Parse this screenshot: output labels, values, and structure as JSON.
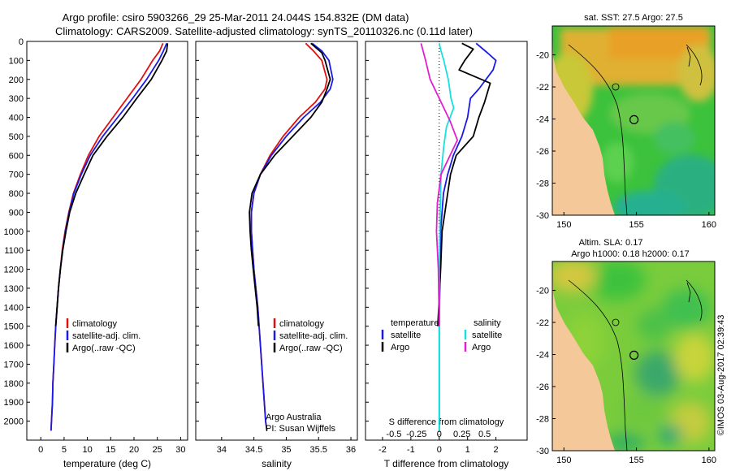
{
  "header": {
    "title_line1": "Argo profile: csiro 5903266_29 25-Mar-2011 24.044S 154.832E (DM data)",
    "title_line2": "Climatology: CARS2009. Satellite-adjusted climatology: synTS_20110326.nc (0.11d later)"
  },
  "credit": {
    "org": "Argo Australia",
    "pi": "PI: Susan Wijffels"
  },
  "timestamp": "©IMOS 03-Aug-2017 02:39:43",
  "colors": {
    "climatology": "#e01010",
    "satellite": "#1a1ae6",
    "argo": "#000000",
    "salinity_satellite": "#18e0e0",
    "salinity_argo": "#e020d0",
    "land": "#f5c89a",
    "contour": "#000000"
  },
  "chart_data": [
    {
      "id": "temperature",
      "type": "line",
      "xlabel": "temperature (deg C)",
      "ylabel": "",
      "xlim": [
        -3,
        31.5
      ],
      "ylim": [
        2100,
        0
      ],
      "xticks": [
        0,
        5,
        10,
        15,
        20,
        25,
        30
      ],
      "yticks": [
        0,
        100,
        200,
        300,
        400,
        500,
        600,
        700,
        800,
        900,
        1000,
        1100,
        1200,
        1300,
        1400,
        1500,
        1600,
        1700,
        1800,
        1900,
        2000
      ],
      "legend": [
        "climatology",
        "satellite-adj. clim.",
        "Argo(..raw -QC)"
      ],
      "series": [
        {
          "name": "climatology",
          "color": "climatology",
          "points": [
            [
              26.2,
              10
            ],
            [
              25.5,
              50
            ],
            [
              24.0,
              100
            ],
            [
              21.5,
              200
            ],
            [
              18.5,
              300
            ],
            [
              15.5,
              400
            ],
            [
              12.5,
              500
            ],
            [
              10.2,
              600
            ],
            [
              8.5,
              700
            ],
            [
              7.0,
              800
            ],
            [
              6.0,
              900
            ],
            [
              5.2,
              1000
            ],
            [
              4.6,
              1100
            ],
            [
              4.2,
              1200
            ],
            [
              3.8,
              1300
            ],
            [
              3.5,
              1400
            ],
            [
              3.2,
              1500
            ],
            [
              3.0,
              1600
            ],
            [
              2.8,
              1700
            ],
            [
              2.6,
              1800
            ],
            [
              2.5,
              1900
            ],
            [
              2.3,
              2000
            ],
            [
              2.2,
              2050
            ]
          ]
        },
        {
          "name": "satellite-adj. clim.",
          "color": "satellite",
          "points": [
            [
              27.0,
              10
            ],
            [
              26.3,
              50
            ],
            [
              25.3,
              100
            ],
            [
              22.7,
              200
            ],
            [
              19.7,
              300
            ],
            [
              16.5,
              400
            ],
            [
              13.3,
              500
            ],
            [
              10.6,
              600
            ],
            [
              8.7,
              700
            ],
            [
              7.1,
              800
            ],
            [
              6.1,
              900
            ],
            [
              5.3,
              1000
            ],
            [
              4.7,
              1100
            ],
            [
              4.2,
              1200
            ],
            [
              3.8,
              1300
            ],
            [
              3.5,
              1400
            ],
            [
              3.2,
              1500
            ],
            [
              3.0,
              1600
            ],
            [
              2.8,
              1700
            ],
            [
              2.6,
              1800
            ],
            [
              2.5,
              1900
            ],
            [
              2.3,
              2000
            ],
            [
              2.2,
              2050
            ]
          ]
        },
        {
          "name": "Argo(..raw -QC)",
          "color": "argo",
          "points": [
            [
              27.2,
              10
            ],
            [
              27.0,
              50
            ],
            [
              26.0,
              100
            ],
            [
              23.7,
              200
            ],
            [
              20.6,
              300
            ],
            [
              17.6,
              400
            ],
            [
              14.2,
              500
            ],
            [
              11.2,
              600
            ],
            [
              9.3,
              700
            ],
            [
              7.5,
              800
            ],
            [
              6.2,
              900
            ],
            [
              5.4,
              1000
            ],
            [
              4.7,
              1100
            ],
            [
              4.2,
              1200
            ],
            [
              3.8,
              1300
            ],
            [
              3.5,
              1400
            ],
            [
              3.2,
              1500
            ]
          ]
        }
      ]
    },
    {
      "id": "salinity",
      "type": "line",
      "xlabel": "salinity",
      "xlim": [
        33.6,
        36.1
      ],
      "ylim": [
        2100,
        0
      ],
      "xticks": [
        34,
        34.5,
        35,
        35.5,
        36
      ],
      "legend": [
        "climatology",
        "satellite-adj. clim.",
        "Argo(..raw -QC)"
      ],
      "series": [
        {
          "name": "climatology",
          "color": "climatology",
          "points": [
            [
              35.3,
              10
            ],
            [
              35.42,
              50
            ],
            [
              35.55,
              100
            ],
            [
              35.63,
              200
            ],
            [
              35.6,
              250
            ],
            [
              35.45,
              320
            ],
            [
              35.2,
              400
            ],
            [
              34.95,
              500
            ],
            [
              34.75,
              600
            ],
            [
              34.6,
              700
            ],
            [
              34.5,
              800
            ],
            [
              34.46,
              900
            ],
            [
              34.46,
              1000
            ],
            [
              34.48,
              1100
            ],
            [
              34.5,
              1200
            ],
            [
              34.53,
              1300
            ],
            [
              34.56,
              1400
            ],
            [
              34.58,
              1500
            ],
            [
              34.6,
              1600
            ],
            [
              34.62,
              1700
            ],
            [
              34.64,
              1800
            ],
            [
              34.66,
              1900
            ],
            [
              34.68,
              2000
            ],
            [
              34.7,
              2050
            ]
          ]
        },
        {
          "name": "satellite-adj. clim.",
          "color": "satellite",
          "points": [
            [
              35.4,
              10
            ],
            [
              35.55,
              50
            ],
            [
              35.66,
              100
            ],
            [
              35.72,
              200
            ],
            [
              35.68,
              250
            ],
            [
              35.53,
              320
            ],
            [
              35.27,
              400
            ],
            [
              35.0,
              500
            ],
            [
              34.77,
              600
            ],
            [
              34.6,
              700
            ],
            [
              34.5,
              800
            ],
            [
              34.46,
              900
            ],
            [
              34.46,
              1000
            ],
            [
              34.48,
              1100
            ],
            [
              34.5,
              1200
            ],
            [
              34.53,
              1300
            ],
            [
              34.56,
              1400
            ],
            [
              34.58,
              1500
            ],
            [
              34.6,
              1600
            ],
            [
              34.62,
              1700
            ],
            [
              34.64,
              1800
            ],
            [
              34.66,
              1900
            ],
            [
              34.68,
              2000
            ],
            [
              34.7,
              2050
            ]
          ]
        },
        {
          "name": "Argo(..raw -QC)",
          "color": "argo",
          "points": [
            [
              35.38,
              10
            ],
            [
              35.55,
              60
            ],
            [
              35.6,
              100
            ],
            [
              35.68,
              200
            ],
            [
              35.62,
              260
            ],
            [
              35.55,
              320
            ],
            [
              35.38,
              400
            ],
            [
              35.1,
              500
            ],
            [
              34.82,
              600
            ],
            [
              34.6,
              700
            ],
            [
              34.47,
              800
            ],
            [
              34.43,
              900
            ],
            [
              34.44,
              1000
            ],
            [
              34.46,
              1100
            ],
            [
              34.49,
              1200
            ],
            [
              34.52,
              1300
            ],
            [
              34.55,
              1400
            ],
            [
              34.57,
              1500
            ]
          ]
        }
      ]
    },
    {
      "id": "differences",
      "type": "line",
      "xlabel": "T difference from climatology",
      "xlabel_top": "S difference from climatology",
      "xlim": [
        -2.6,
        3.1
      ],
      "ylim": [
        2100,
        0
      ],
      "xticks": [
        -2,
        -1,
        0,
        1,
        2
      ],
      "xticks_top": [
        -0.5,
        -0.25,
        0,
        0.25,
        0.5
      ],
      "legend_temperature_title": "temperature",
      "legend_salinity_title": "salinity",
      "legend": [
        "satellite",
        "Argo",
        "satellite",
        "Argo"
      ],
      "series": [
        {
          "name": "T satellite",
          "color": "satellite",
          "points": [
            [
              1.3,
              10
            ],
            [
              1.7,
              60
            ],
            [
              2.0,
              100
            ],
            [
              1.9,
              150
            ],
            [
              1.4,
              250
            ],
            [
              1.1,
              300
            ],
            [
              1.0,
              400
            ],
            [
              0.8,
              500
            ],
            [
              0.5,
              600
            ],
            [
              0.3,
              700
            ],
            [
              0.15,
              800
            ],
            [
              0.05,
              1000
            ],
            [
              0.0,
              1500
            ],
            [
              0.0,
              2050
            ]
          ]
        },
        {
          "name": "T Argo",
          "color": "argo",
          "points": [
            [
              0.8,
              10
            ],
            [
              1.2,
              40
            ],
            [
              0.9,
              100
            ],
            [
              0.7,
              150
            ],
            [
              1.8,
              220
            ],
            [
              1.6,
              320
            ],
            [
              1.4,
              400
            ],
            [
              1.2,
              500
            ],
            [
              0.6,
              600
            ],
            [
              0.4,
              700
            ],
            [
              0.3,
              800
            ],
            [
              0.2,
              900
            ],
            [
              0.1,
              1000
            ],
            [
              0.05,
              1200
            ],
            [
              -0.05,
              1500
            ]
          ]
        },
        {
          "name": "S satellite",
          "color": "salinity_satellite",
          "points": [
            [
              0.0,
              10
            ],
            [
              0.02,
              50
            ],
            [
              0.05,
              100
            ],
            [
              0.1,
              200
            ],
            [
              0.13,
              300
            ],
            [
              0.16,
              350
            ],
            [
              0.08,
              450
            ],
            [
              0.05,
              550
            ],
            [
              0.02,
              700
            ],
            [
              0.01,
              900
            ],
            [
              0.0,
              1200
            ],
            [
              0.0,
              2050
            ]
          ]
        },
        {
          "name": "S Argo",
          "color": "salinity_argo",
          "points": [
            [
              -0.2,
              10
            ],
            [
              -0.15,
              100
            ],
            [
              -0.1,
              200
            ],
            [
              0.0,
              300
            ],
            [
              0.12,
              420
            ],
            [
              0.2,
              520
            ],
            [
              0.12,
              600
            ],
            [
              0.02,
              700
            ],
            [
              -0.02,
              850
            ],
            [
              -0.03,
              1000
            ],
            [
              -0.01,
              1200
            ],
            [
              0.0,
              1500
            ]
          ]
        }
      ]
    },
    {
      "id": "sst_map",
      "type": "heatmap",
      "title": "sat. SST: 27.5 Argo: 27.5",
      "xlim": [
        149.2,
        160.4
      ],
      "ylim": [
        -30,
        -18.2
      ],
      "xticks": [
        150,
        155,
        160
      ],
      "yticks": [
        -20,
        -22,
        -24,
        -26,
        -28,
        -30
      ],
      "float_position": [
        154.832,
        -24.044
      ]
    },
    {
      "id": "sla_map",
      "type": "heatmap",
      "title_line1": "Altim. SLA: 0.17",
      "title_line2": "Argo h1000: 0.18 h2000: 0.17",
      "xlim": [
        149.2,
        160.4
      ],
      "ylim": [
        -30,
        -18.2
      ],
      "xticks": [
        150,
        155,
        160
      ],
      "yticks": [
        -20,
        -22,
        -24,
        -26,
        -28,
        -30
      ],
      "float_position": [
        154.832,
        -24.044
      ]
    }
  ]
}
